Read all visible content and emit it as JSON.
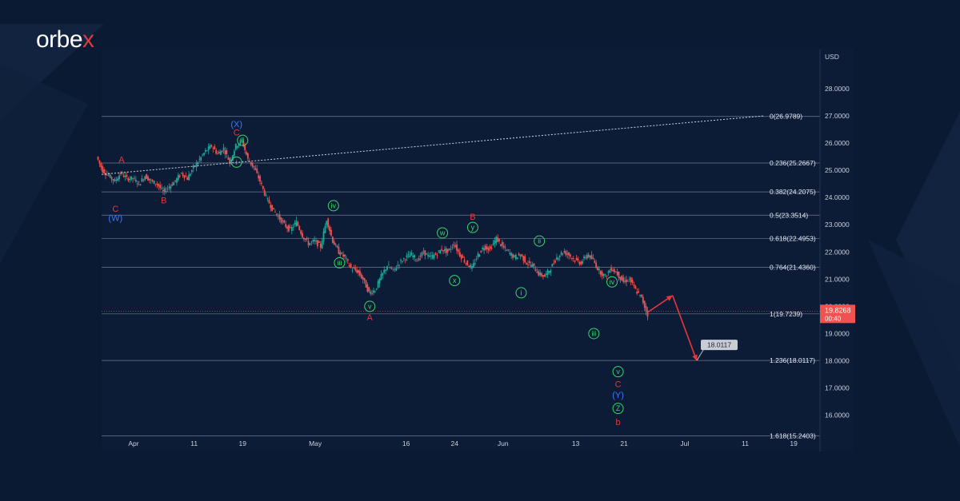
{
  "brand": {
    "name_main": "orbe",
    "name_accent": "x"
  },
  "chart_data": {
    "type": "candlestick",
    "currency_label": "USD",
    "y_ticks": [
      "28.0000",
      "27.0000",
      "26.0000",
      "25.0000",
      "24.0000",
      "23.0000",
      "22.0000",
      "21.0000",
      "20.0000",
      "19.0000",
      "18.0000",
      "17.0000",
      "16.0000"
    ],
    "ylim": [
      15.4,
      28.9
    ],
    "x_ticks": [
      {
        "day": 0,
        "label": "Apr"
      },
      {
        "day": 10,
        "label": "11"
      },
      {
        "day": 18,
        "label": "19"
      },
      {
        "day": 30,
        "label": "May"
      },
      {
        "day": 45,
        "label": "16"
      },
      {
        "day": 53,
        "label": "24"
      },
      {
        "day": 61,
        "label": "Jun"
      },
      {
        "day": 73,
        "label": "13"
      },
      {
        "day": 81,
        "label": "21"
      },
      {
        "day": 91,
        "label": "Jul"
      },
      {
        "day": 101,
        "label": "11"
      },
      {
        "day": 109,
        "label": "19"
      }
    ],
    "price_path": [
      [
        -6,
        25.5
      ],
      [
        -5,
        25.0
      ],
      [
        -4,
        24.8
      ],
      [
        -3,
        24.6
      ],
      [
        -2,
        24.9
      ],
      [
        -1,
        24.7
      ],
      [
        0,
        24.7
      ],
      [
        1,
        24.5
      ],
      [
        2,
        24.8
      ],
      [
        3,
        24.6
      ],
      [
        4,
        24.5
      ],
      [
        5,
        24.2
      ],
      [
        6,
        24.4
      ],
      [
        7,
        24.6
      ],
      [
        8,
        24.9
      ],
      [
        9,
        24.7
      ],
      [
        10,
        25.1
      ],
      [
        11,
        25.4
      ],
      [
        12,
        25.7
      ],
      [
        13,
        25.9
      ],
      [
        14,
        25.6
      ],
      [
        15,
        25.8
      ],
      [
        16,
        25.3
      ],
      [
        17,
        25.9
      ],
      [
        18,
        26.1
      ],
      [
        19,
        25.4
      ],
      [
        20,
        25.1
      ],
      [
        21,
        24.6
      ],
      [
        22,
        24.0
      ],
      [
        23,
        23.6
      ],
      [
        24,
        23.3
      ],
      [
        25,
        23.0
      ],
      [
        26,
        22.8
      ],
      [
        27,
        23.1
      ],
      [
        28,
        22.6
      ],
      [
        29,
        22.3
      ],
      [
        30,
        22.4
      ],
      [
        31,
        22.2
      ],
      [
        32,
        23.2
      ],
      [
        33,
        22.4
      ],
      [
        34,
        22.0
      ],
      [
        35,
        21.8
      ],
      [
        36,
        21.4
      ],
      [
        37,
        21.3
      ],
      [
        38,
        21.0
      ],
      [
        39,
        20.5
      ],
      [
        40,
        20.6
      ],
      [
        41,
        21.1
      ],
      [
        42,
        21.5
      ],
      [
        43,
        21.3
      ],
      [
        44,
        21.6
      ],
      [
        45,
        21.8
      ],
      [
        46,
        21.9
      ],
      [
        47,
        21.7
      ],
      [
        48,
        22.0
      ],
      [
        49,
        21.8
      ],
      [
        50,
        21.9
      ],
      [
        51,
        22.1
      ],
      [
        52,
        22.0
      ],
      [
        53,
        22.3
      ],
      [
        54,
        21.9
      ],
      [
        55,
        21.6
      ],
      [
        56,
        21.4
      ],
      [
        57,
        21.9
      ],
      [
        58,
        22.2
      ],
      [
        59,
        22.1
      ],
      [
        60,
        22.5
      ],
      [
        61,
        22.2
      ],
      [
        62,
        22.0
      ],
      [
        63,
        21.8
      ],
      [
        64,
        21.9
      ],
      [
        65,
        21.6
      ],
      [
        66,
        21.5
      ],
      [
        67,
        21.2
      ],
      [
        68,
        21.1
      ],
      [
        69,
        21.4
      ],
      [
        70,
        21.8
      ],
      [
        71,
        22.0
      ],
      [
        72,
        21.9
      ],
      [
        73,
        21.7
      ],
      [
        74,
        21.6
      ],
      [
        75,
        21.9
      ],
      [
        76,
        21.7
      ],
      [
        77,
        21.3
      ],
      [
        78,
        21.1
      ],
      [
        79,
        21.4
      ],
      [
        80,
        21.2
      ],
      [
        81,
        20.9
      ],
      [
        82,
        21.0
      ],
      [
        83,
        20.6
      ],
      [
        84,
        20.3
      ],
      [
        85,
        19.7
      ]
    ],
    "last_price": "19.8268",
    "countdown": "00:40",
    "fib_levels": [
      {
        "label": "0(26.9789)",
        "value": 26.9789
      },
      {
        "label": "0.236(25.2667)",
        "value": 25.2667
      },
      {
        "label": "0.382(24.2075)",
        "value": 24.2075
      },
      {
        "label": "0.5(23.3514)",
        "value": 23.3514
      },
      {
        "label": "0.618(22.4953)",
        "value": 22.4953
      },
      {
        "label": "0.764(21.4360)",
        "value": 21.436
      },
      {
        "label": "1(19.7239)",
        "value": 19.7239
      },
      {
        "label": "1.236(18.0117)",
        "value": 18.0117
      },
      {
        "label": "1.618(15.2403)",
        "value": 15.2403
      }
    ],
    "target_label": "18.0117",
    "wave_labels": [
      {
        "text": "A",
        "color": "red",
        "circled": false,
        "day": -2,
        "price": 25.4
      },
      {
        "text": "C",
        "color": "red",
        "circled": false,
        "day": -3,
        "price": 23.6
      },
      {
        "text": "(W)",
        "color": "blue",
        "circled": false,
        "day": -3,
        "price": 23.25
      },
      {
        "text": "B",
        "color": "red",
        "circled": false,
        "day": 5,
        "price": 23.9
      },
      {
        "text": "(X)",
        "color": "blue",
        "circled": false,
        "day": 17,
        "price": 26.7
      },
      {
        "text": "C",
        "color": "red",
        "circled": false,
        "day": 17,
        "price": 26.4
      },
      {
        "text": "ii",
        "color": "green",
        "circled": true,
        "day": 18,
        "price": 26.1
      },
      {
        "text": "i",
        "color": "green",
        "circled": true,
        "day": 17,
        "price": 25.3
      },
      {
        "text": "iv",
        "color": "green",
        "circled": true,
        "day": 33,
        "price": 23.7
      },
      {
        "text": "iii",
        "color": "green",
        "circled": true,
        "day": 34,
        "price": 21.6
      },
      {
        "text": "v",
        "color": "green",
        "circled": true,
        "day": 39,
        "price": 20.0
      },
      {
        "text": "A",
        "color": "red",
        "circled": false,
        "day": 39,
        "price": 19.6
      },
      {
        "text": "w",
        "color": "green",
        "circled": true,
        "day": 51,
        "price": 22.7
      },
      {
        "text": "x",
        "color": "green",
        "circled": true,
        "day": 53,
        "price": 20.95
      },
      {
        "text": "B",
        "color": "red",
        "circled": false,
        "day": 56,
        "price": 23.3
      },
      {
        "text": "y",
        "color": "green",
        "circled": true,
        "day": 56,
        "price": 22.9
      },
      {
        "text": "i",
        "color": "green",
        "circled": true,
        "day": 64,
        "price": 20.5
      },
      {
        "text": "ii",
        "color": "green",
        "circled": true,
        "day": 67,
        "price": 22.4
      },
      {
        "text": "iii",
        "color": "green",
        "circled": true,
        "day": 76,
        "price": 19.0
      },
      {
        "text": "iv",
        "color": "green",
        "circled": true,
        "day": 79,
        "price": 20.9
      },
      {
        "text": "v",
        "color": "green",
        "circled": true,
        "day": 80,
        "price": 17.6
      },
      {
        "text": "C",
        "color": "red",
        "circled": false,
        "day": 80,
        "price": 17.15
      },
      {
        "text": "(Y)",
        "color": "blue",
        "circled": false,
        "day": 80,
        "price": 16.75
      },
      {
        "text": "Z",
        "color": "green",
        "circled": true,
        "day": 80,
        "price": 16.25
      },
      {
        "text": "b",
        "color": "red",
        "circled": false,
        "day": 80,
        "price": 15.75
      }
    ],
    "forecast_path": [
      [
        85,
        19.8
      ],
      [
        89,
        20.4
      ],
      [
        93,
        18.0
      ]
    ]
  }
}
